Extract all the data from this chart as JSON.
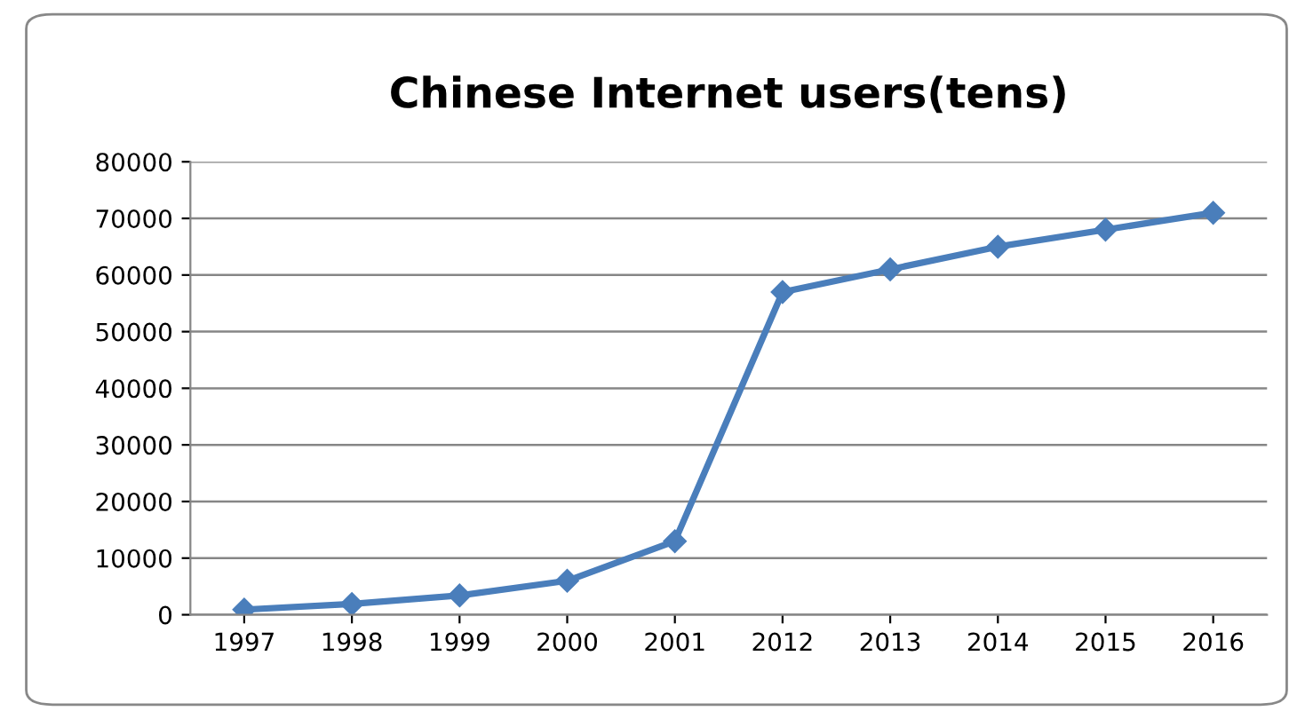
{
  "chart_data": {
    "type": "line",
    "title": "Chinese Internet users(tens)",
    "categories": [
      "1997",
      "1998",
      "1999",
      "2000",
      "2001",
      "2012",
      "2013",
      "2014",
      "2015",
      "2016"
    ],
    "series": [
      {
        "color": "#4a7ebb",
        "values": [
          900,
          1900,
          3400,
          6000,
          13000,
          57000,
          61000,
          65000,
          68000,
          71000
        ]
      }
    ],
    "ylim": [
      0,
      80000
    ],
    "yticks": [
      0,
      10000,
      20000,
      30000,
      40000,
      50000,
      60000,
      70000,
      80000
    ],
    "grid": "y",
    "legend": false,
    "marker": "diamond",
    "line_style": "solid"
  }
}
